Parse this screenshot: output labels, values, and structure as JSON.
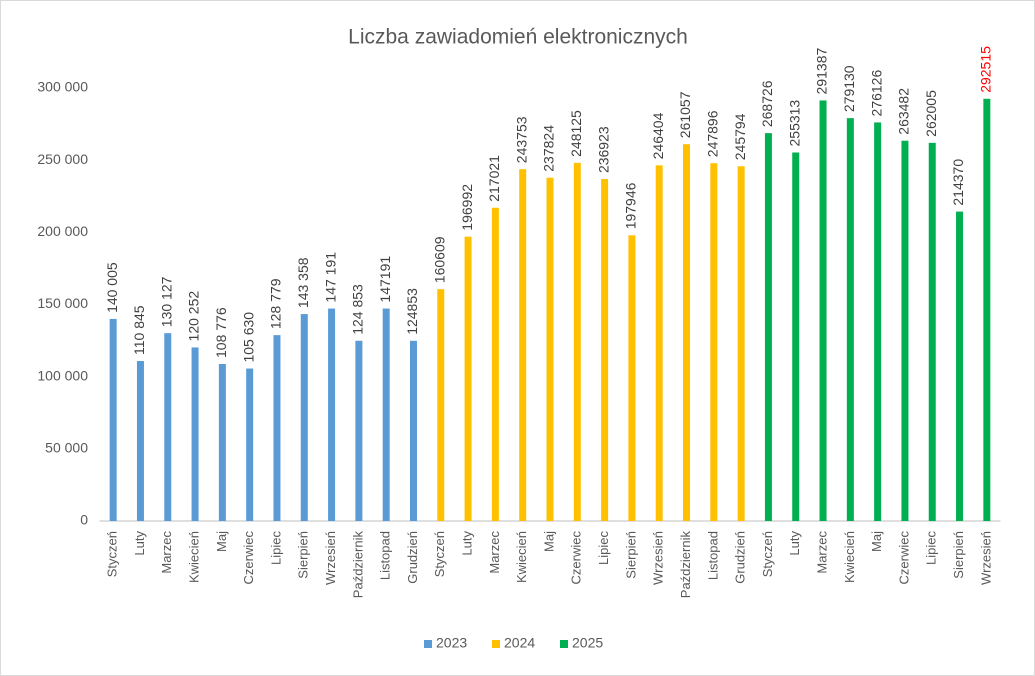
{
  "chart_data": {
    "type": "bar",
    "title": "Liczba zawiadomień elektronicznych",
    "categories": [
      "Styczeń",
      "Luty",
      "Marzec",
      "Kwiecień",
      "Maj",
      "Czerwiec",
      "Lipiec",
      "Sierpień",
      "Wrzesień",
      "Październik",
      "Listopad",
      "Grudzień",
      "Styczeń",
      "Luty",
      "Marzec",
      "Kwiecień",
      "Maj",
      "Czerwiec",
      "Lipiec",
      "Sierpień",
      "Wrzesień",
      "Październik",
      "Listopad",
      "Grudzień",
      "Styczeń",
      "Luty",
      "Marzec",
      "Kwiecień",
      "Maj",
      "Czerwiec",
      "Lipiec",
      "Sierpień",
      "Wrzesień"
    ],
    "series": [
      {
        "name": "2023",
        "color": "#5b9bd5",
        "values": [
          140005,
          110845,
          130127,
          120252,
          108776,
          105630,
          128779,
          143358,
          147191,
          124853,
          147191,
          124853,
          null,
          null,
          null,
          null,
          null,
          null,
          null,
          null,
          null,
          null,
          null,
          null,
          null,
          null,
          null,
          null,
          null,
          null,
          null,
          null,
          null
        ],
        "value_labels": [
          "140 005",
          "110 845",
          "130 127",
          "120 252",
          "108 776",
          "105 630",
          "128 779",
          "143 358",
          "147 191",
          "124 853",
          "147191",
          "124853",
          null,
          null,
          null,
          null,
          null,
          null,
          null,
          null,
          null,
          null,
          null,
          null,
          null,
          null,
          null,
          null,
          null,
          null,
          null,
          null,
          null
        ]
      },
      {
        "name": "2024",
        "color": "#ffc000",
        "values": [
          null,
          null,
          null,
          null,
          null,
          null,
          null,
          null,
          null,
          null,
          null,
          null,
          160609,
          196992,
          217021,
          243753,
          237824,
          248125,
          236923,
          197946,
          246404,
          261057,
          247896,
          245794,
          null,
          null,
          null,
          null,
          null,
          null,
          null,
          null,
          null
        ]
      },
      {
        "name": "2025",
        "color": "#00b050",
        "last_label_color": "#ff0000",
        "values": [
          null,
          null,
          null,
          null,
          null,
          null,
          null,
          null,
          null,
          null,
          null,
          null,
          null,
          null,
          null,
          null,
          null,
          null,
          null,
          null,
          null,
          null,
          null,
          null,
          268726,
          255313,
          291387,
          279130,
          276126,
          263482,
          262005,
          214370,
          292515
        ]
      }
    ],
    "ylim": [
      0,
      300000
    ],
    "yticks": [
      0,
      {
        "value": 50000,
        "label": "50 000"
      },
      {
        "value": 100000,
        "label": "100 000"
      },
      {
        "value": 150000,
        "label": "150 000"
      },
      {
        "value": 200000,
        "label": "200 000"
      },
      {
        "value": 250000,
        "label": "250 000"
      },
      {
        "value": 300000,
        "label": "300 000"
      }
    ],
    "grid": false,
    "legend": "bottom"
  }
}
